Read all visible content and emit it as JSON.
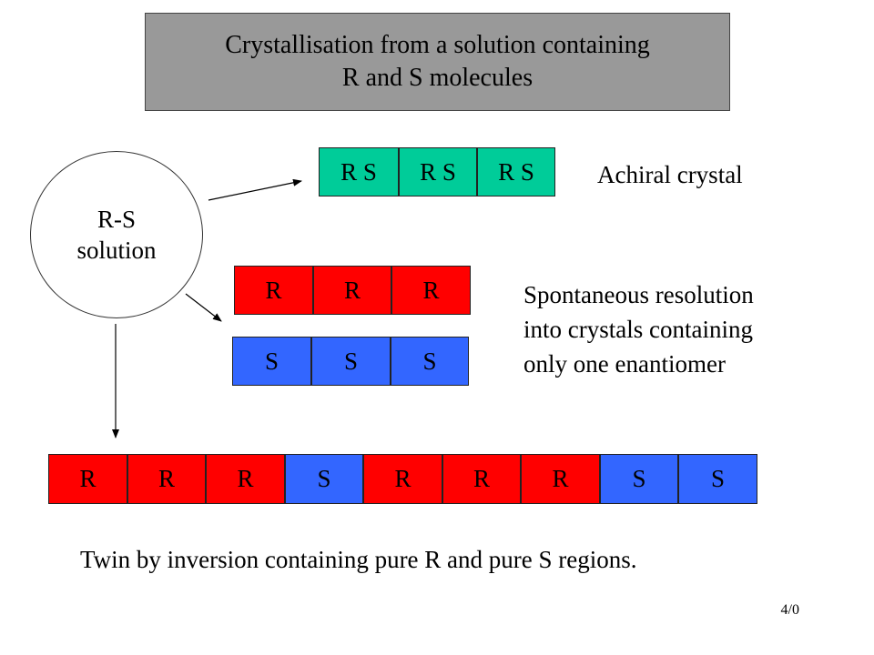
{
  "title": {
    "line1": "Crystallisation from a solution containing",
    "line2": "R and S molecules"
  },
  "solution": {
    "line1": "R-S",
    "line2": "solution"
  },
  "achiral_row": [
    "R S",
    "R S",
    "R S"
  ],
  "achiral_label": "Achiral crystal",
  "r_row": [
    "R",
    "R",
    "R"
  ],
  "s_row": [
    "S",
    "S",
    "S"
  ],
  "resolution_label": {
    "line1": "Spontaneous resolution",
    "line2": "into crystals containing",
    "line3": "only one enantiomer"
  },
  "twin_row": [
    {
      "label": "R",
      "type": "R"
    },
    {
      "label": "R",
      "type": "R"
    },
    {
      "label": "R",
      "type": "R"
    },
    {
      "label": "S",
      "type": "S"
    },
    {
      "label": "R",
      "type": "R"
    },
    {
      "label": "R",
      "type": "R"
    },
    {
      "label": "R",
      "type": "R"
    },
    {
      "label": "S",
      "type": "S"
    },
    {
      "label": "S",
      "type": "S"
    }
  ],
  "twin_label": "Twin by inversion containing pure R and pure S regions.",
  "page_number": "4/0",
  "colors": {
    "title_bg": "#999999",
    "achiral": "#00cc99",
    "r": "#ff0000",
    "s": "#3366ff"
  }
}
